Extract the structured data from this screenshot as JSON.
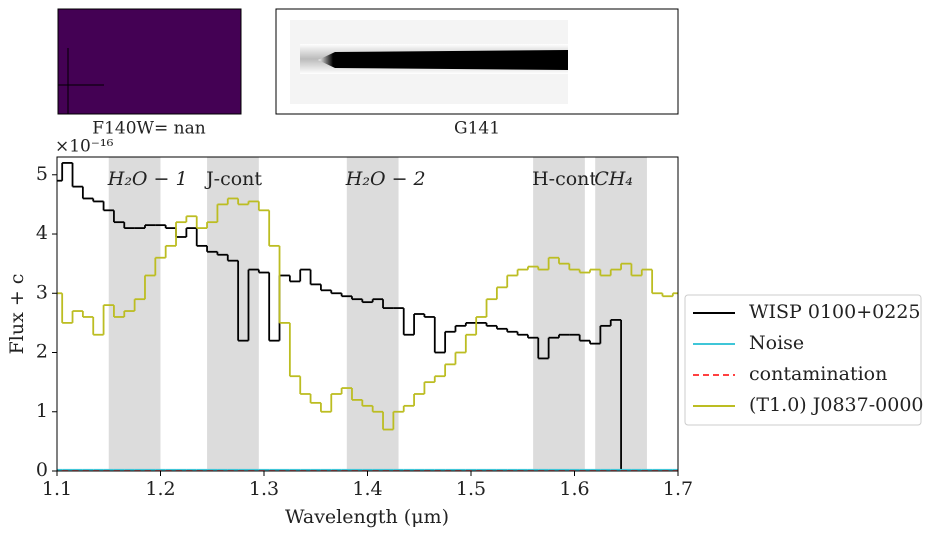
{
  "chart_data": {
    "type": "step",
    "thumbnails": [
      {
        "label": "F140W= nan"
      },
      {
        "label": "G141"
      }
    ],
    "offset_text": "×10⁻¹⁶",
    "xlabel": "Wavelength (μm)",
    "ylabel": "Flux + c",
    "xlim": [
      1.1,
      1.7
    ],
    "ylim": [
      0,
      5.3
    ],
    "xticks": [
      1.1,
      1.2,
      1.3,
      1.4,
      1.5,
      1.6,
      1.7
    ],
    "yticks": [
      0,
      1,
      2,
      3,
      4,
      5
    ],
    "regions": [
      {
        "label": "H₂O − 1",
        "xlim": [
          1.15,
          1.2
        ]
      },
      {
        "label": "J-cont",
        "xlim": [
          1.245,
          1.295
        ]
      },
      {
        "label": "H₂O − 2",
        "xlim": [
          1.38,
          1.43
        ]
      },
      {
        "label": "H-cont",
        "xlim": [
          1.56,
          1.61
        ]
      },
      {
        "label": "CH₄",
        "xlim": [
          1.62,
          1.67
        ]
      }
    ],
    "region_color": "#dcdcdc",
    "legend": "right",
    "x": [
      1.1,
      1.11,
      1.12,
      1.13,
      1.14,
      1.15,
      1.16,
      1.17,
      1.18,
      1.19,
      1.2,
      1.21,
      1.22,
      1.23,
      1.24,
      1.25,
      1.26,
      1.27,
      1.28,
      1.29,
      1.3,
      1.31,
      1.32,
      1.33,
      1.34,
      1.35,
      1.36,
      1.37,
      1.38,
      1.39,
      1.4,
      1.41,
      1.42,
      1.43,
      1.44,
      1.45,
      1.46,
      1.47,
      1.48,
      1.49,
      1.5,
      1.51,
      1.52,
      1.53,
      1.54,
      1.55,
      1.56,
      1.57,
      1.58,
      1.59,
      1.6,
      1.61,
      1.62,
      1.63,
      1.64,
      1.65,
      1.66,
      1.67,
      1.68,
      1.69,
      1.7
    ],
    "series": [
      {
        "name": "WISP 0100+0225",
        "color": "#000000",
        "style": "solid",
        "values": [
          4.9,
          5.2,
          4.8,
          4.6,
          4.55,
          4.4,
          4.2,
          4.1,
          4.1,
          4.15,
          4.15,
          4.1,
          3.95,
          4.1,
          3.8,
          3.7,
          3.65,
          3.55,
          2.2,
          3.4,
          3.35,
          2.2,
          3.3,
          3.2,
          3.4,
          3.15,
          3.05,
          3.0,
          2.95,
          2.9,
          2.85,
          2.9,
          2.75,
          2.75,
          2.3,
          2.65,
          2.6,
          2.0,
          2.35,
          2.45,
          2.5,
          2.5,
          2.45,
          2.4,
          2.35,
          2.3,
          2.25,
          1.9,
          2.25,
          2.3,
          2.3,
          2.2,
          2.15,
          2.45,
          2.55,
          0,
          0,
          0,
          0,
          0,
          0
        ]
      },
      {
        "name": "Noise",
        "color": "#3fc6d8",
        "style": "solid",
        "values": [
          0.02,
          0.02,
          0.02,
          0.02,
          0.02,
          0.02,
          0.02,
          0.02,
          0.02,
          0.02,
          0.02,
          0.02,
          0.02,
          0.02,
          0.02,
          0.02,
          0.02,
          0.02,
          0.02,
          0.02,
          0.02,
          0.02,
          0.02,
          0.02,
          0.02,
          0.02,
          0.02,
          0.02,
          0.02,
          0.02,
          0.02,
          0.02,
          0.02,
          0.02,
          0.02,
          0.02,
          0.02,
          0.02,
          0.02,
          0.02,
          0.02,
          0.02,
          0.02,
          0.02,
          0.02,
          0.02,
          0.02,
          0.02,
          0.02,
          0.02,
          0.02,
          0.02,
          0.02,
          0.02,
          0.02,
          0.02,
          0.02,
          0.02,
          0.02,
          0.02,
          0.02
        ]
      },
      {
        "name": "contamination",
        "color": "#ff4040",
        "style": "dashed",
        "values": [
          0,
          0,
          0,
          0,
          0,
          0,
          0,
          0,
          0,
          0,
          0,
          0,
          0,
          0,
          0,
          0,
          0,
          0,
          0,
          0,
          0,
          0,
          0,
          0,
          0,
          0,
          0,
          0,
          0,
          0,
          0,
          0,
          0,
          0,
          0,
          0,
          0,
          0,
          0,
          0,
          0,
          0,
          0,
          0,
          0,
          0,
          0,
          0,
          0,
          0,
          0,
          0,
          0,
          0,
          0,
          0,
          0,
          0,
          0,
          0,
          0
        ]
      },
      {
        "name": "(T1.0) J0837-0000",
        "color": "#bcbd22",
        "style": "solid",
        "values": [
          3.0,
          2.5,
          2.7,
          2.6,
          2.3,
          2.8,
          2.6,
          2.7,
          2.9,
          3.3,
          3.6,
          3.8,
          4.2,
          4.3,
          4.1,
          4.2,
          4.5,
          4.6,
          4.5,
          4.55,
          4.4,
          3.8,
          2.5,
          1.6,
          1.3,
          1.15,
          1.0,
          1.3,
          1.4,
          1.2,
          1.1,
          1.0,
          0.7,
          1.0,
          1.1,
          1.3,
          1.5,
          1.6,
          1.8,
          2.0,
          2.3,
          2.6,
          2.9,
          3.1,
          3.3,
          3.4,
          3.45,
          3.4,
          3.6,
          3.5,
          3.4,
          3.35,
          3.4,
          3.3,
          3.4,
          3.5,
          3.3,
          3.4,
          3.0,
          2.95,
          3.0
        ]
      }
    ]
  }
}
